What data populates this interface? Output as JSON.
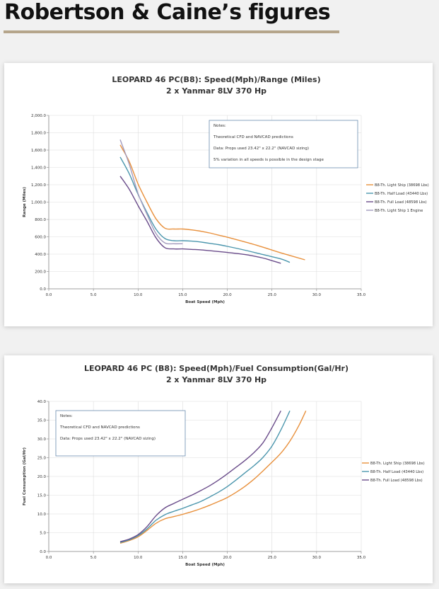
{
  "page": {
    "title": "Robertson & Caine’s figures"
  },
  "chart_data": [
    {
      "type": "line",
      "title": "LEOPARD 46 PC(B8): Speed(Mph)/Range (Miles)",
      "subtitle": "2 x Yanmar 8LV 370 Hp",
      "xlabel": "Boat Speed (Mph)",
      "ylabel": "Range (Miles)",
      "xlim": [
        0,
        35
      ],
      "ylim": [
        0,
        2000
      ],
      "xticks": [
        0,
        5,
        10,
        15,
        20,
        25,
        30,
        35
      ],
      "xtick_labels": [
        "0.0",
        "5.0",
        "10.0",
        "15.0",
        "20.0",
        "25.0",
        "30.0",
        "35.0"
      ],
      "yticks": [
        0,
        200,
        400,
        600,
        800,
        1000,
        1200,
        1400,
        1600,
        1800,
        2000
      ],
      "ytick_labels": [
        "0.0",
        "200.0",
        "400.0",
        "600.0",
        "800.0",
        "1,000.0",
        "1,200.0",
        "1,400.0",
        "1,600.0",
        "1,800.0",
        "2,000.0"
      ],
      "grid": true,
      "legend_position": "right",
      "notes": [
        "Notes:",
        "Theoretical  CFD and NAVCAD predictions",
        "Data: Props used 23.42\" x 22.2\" (NAVCAD sizing)",
        "5% variation in all speeds is possible in the design stage"
      ],
      "series": [
        {
          "name": "B8-Th. Light Ship (38698 Lbs)",
          "color": "#e8903c",
          "points": [
            [
              8,
              1660
            ],
            [
              9,
              1470
            ],
            [
              10,
              1210
            ],
            [
              11,
              1000
            ],
            [
              12,
              810
            ],
            [
              13,
              700
            ],
            [
              14,
              690
            ],
            [
              15,
              690
            ],
            [
              16,
              680
            ],
            [
              17,
              665
            ],
            [
              18,
              645
            ],
            [
              19,
              620
            ],
            [
              20,
              595
            ],
            [
              22,
              540
            ],
            [
              24,
              480
            ],
            [
              26,
              415
            ],
            [
              28.7,
              335
            ]
          ]
        },
        {
          "name": "B8-Th. Half Load (43440 Lbs)",
          "color": "#4b96ad",
          "points": [
            [
              8,
              1520
            ],
            [
              9,
              1330
            ],
            [
              10,
              1090
            ],
            [
              11,
              880
            ],
            [
              12,
              690
            ],
            [
              13,
              580
            ],
            [
              14,
              555
            ],
            [
              15,
              555
            ],
            [
              16,
              550
            ],
            [
              17,
              540
            ],
            [
              18,
              525
            ],
            [
              19,
              510
            ],
            [
              20,
              490
            ],
            [
              22,
              445
            ],
            [
              24,
              395
            ],
            [
              26,
              345
            ],
            [
              27,
              305
            ]
          ]
        },
        {
          "name": "B8-Th. Full Load (48598 Lbs)",
          "color": "#6a4c8a",
          "points": [
            [
              8,
              1300
            ],
            [
              9,
              1150
            ],
            [
              10,
              960
            ],
            [
              11,
              780
            ],
            [
              12,
              590
            ],
            [
              13,
              475
            ],
            [
              14,
              460
            ],
            [
              15,
              460
            ],
            [
              16,
              455
            ],
            [
              17,
              450
            ],
            [
              18,
              440
            ],
            [
              19,
              430
            ],
            [
              20,
              420
            ],
            [
              22,
              395
            ],
            [
              24,
              355
            ],
            [
              25,
              325
            ],
            [
              26,
              295
            ]
          ]
        },
        {
          "name": "B8-Th. Light Ship 1 Engine",
          "color": "#a39bbd",
          "points": [
            [
              8,
              1720
            ],
            [
              9,
              1440
            ],
            [
              10,
              1100
            ],
            [
              11,
              860
            ],
            [
              12,
              640
            ],
            [
              13,
              530
            ],
            [
              14,
              520
            ],
            [
              15,
              520
            ]
          ]
        }
      ]
    },
    {
      "type": "line",
      "title": "LEOPARD 46 PC (B8): Speed(Mph)/Fuel Consumption(Gal/Hr)",
      "subtitle": "2 x Yanmar 8LV 370 Hp",
      "xlabel": "Boat Speed (Mph)",
      "ylabel": "Fuel Consumption (Gal/Hr)",
      "xlim": [
        0,
        35
      ],
      "ylim": [
        0,
        40
      ],
      "xticks": [
        0,
        5,
        10,
        15,
        20,
        25,
        30,
        35
      ],
      "xtick_labels": [
        "0.0",
        "5.0",
        "10.0",
        "15.0",
        "20.0",
        "25.0",
        "30.0",
        "35.0"
      ],
      "yticks": [
        0,
        5,
        10,
        15,
        20,
        25,
        30,
        35,
        40
      ],
      "ytick_labels": [
        "0.0",
        "5.0",
        "10.0",
        "15.0",
        "20.0",
        "25.0",
        "30.0",
        "35.0",
        "40.0"
      ],
      "grid": true,
      "legend_position": "right",
      "notes": [
        "Notes:",
        "Theoretical CFD and NAVCAD predictions",
        "Data: Props used 23.42\" x 22.2\" (NAVCAD sizing)"
      ],
      "series": [
        {
          "name": "B8-Th. Light Ship (38698 Lbs)",
          "color": "#e8903c",
          "points": [
            [
              8,
              2.2
            ],
            [
              9,
              2.9
            ],
            [
              10,
              3.9
            ],
            [
              11,
              5.6
            ],
            [
              12,
              7.5
            ],
            [
              13,
              8.7
            ],
            [
              14,
              9.3
            ],
            [
              15,
              9.9
            ],
            [
              16,
              10.6
            ],
            [
              17,
              11.4
            ],
            [
              18,
              12.3
            ],
            [
              19,
              13.3
            ],
            [
              20,
              14.4
            ],
            [
              21,
              15.8
            ],
            [
              22,
              17.4
            ],
            [
              23,
              19.3
            ],
            [
              24,
              21.5
            ],
            [
              25,
              23.8
            ],
            [
              26,
              26.2
            ],
            [
              27,
              29.4
            ],
            [
              28,
              33.5
            ],
            [
              28.8,
              37.5
            ]
          ]
        },
        {
          "name": "B8-Th. Half Load (43440 Lbs)",
          "color": "#4b96ad",
          "points": [
            [
              8,
              2.4
            ],
            [
              9,
              3.1
            ],
            [
              10,
              4.2
            ],
            [
              11,
              6.0
            ],
            [
              12,
              8.3
            ],
            [
              13,
              9.8
            ],
            [
              14,
              10.7
            ],
            [
              15,
              11.5
            ],
            [
              16,
              12.4
            ],
            [
              17,
              13.3
            ],
            [
              18,
              14.5
            ],
            [
              19,
              15.8
            ],
            [
              20,
              17.3
            ],
            [
              21,
              19.1
            ],
            [
              22,
              21.0
            ],
            [
              23,
              22.9
            ],
            [
              24,
              25.1
            ],
            [
              25,
              28.1
            ],
            [
              26,
              32.4
            ],
            [
              27,
              37.5
            ]
          ]
        },
        {
          "name": "B8-Th. Full Load (48598 Lbs)",
          "color": "#6a4c8a",
          "points": [
            [
              8,
              2.6
            ],
            [
              9,
              3.3
            ],
            [
              10,
              4.5
            ],
            [
              11,
              6.6
            ],
            [
              12,
              9.5
            ],
            [
              13,
              11.6
            ],
            [
              14,
              12.8
            ],
            [
              15,
              13.9
            ],
            [
              16,
              15.0
            ],
            [
              17,
              16.2
            ],
            [
              18,
              17.5
            ],
            [
              19,
              19.0
            ],
            [
              20,
              20.7
            ],
            [
              21,
              22.5
            ],
            [
              22,
              24.3
            ],
            [
              23,
              26.4
            ],
            [
              24,
              29.0
            ],
            [
              25,
              33.0
            ],
            [
              26,
              37.5
            ]
          ]
        }
      ]
    }
  ]
}
